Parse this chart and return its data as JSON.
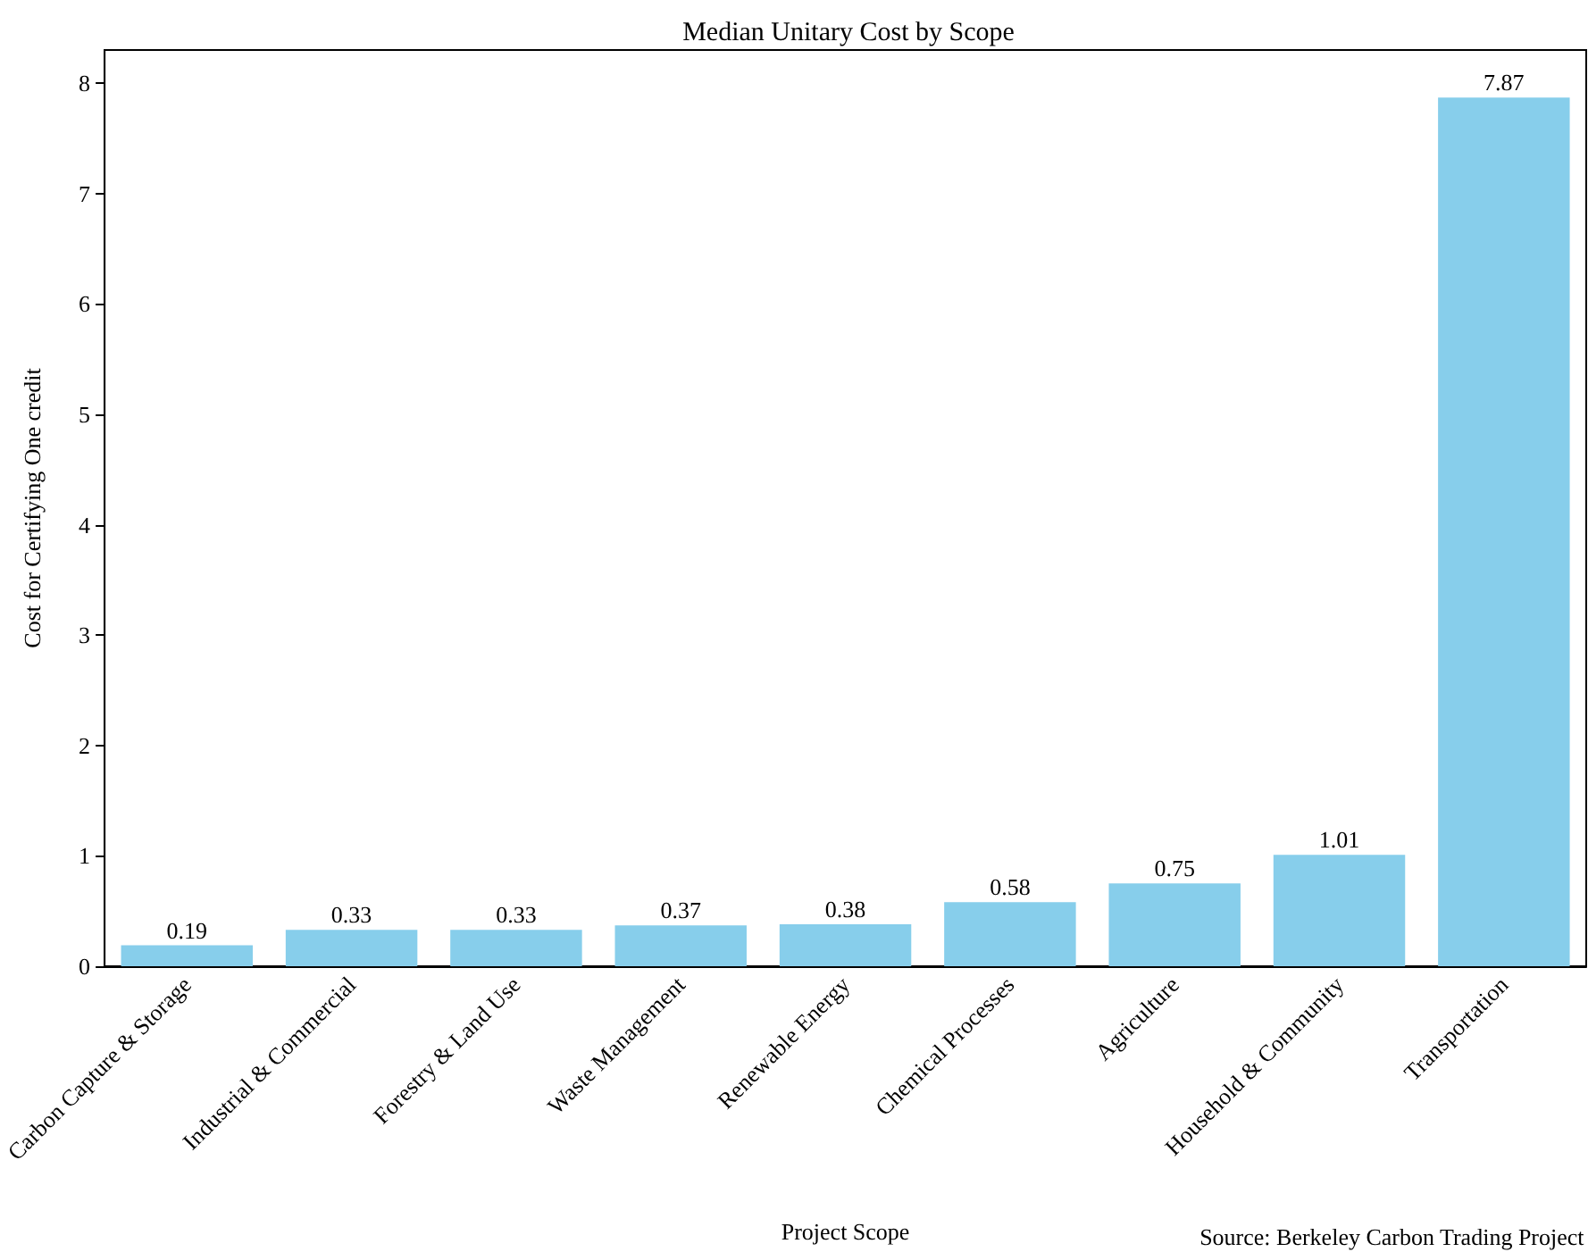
{
  "chart_data": {
    "type": "bar",
    "title": "Median Unitary Cost by Scope",
    "xlabel": "Project Scope",
    "ylabel": "Cost for Certifying One credit",
    "categories": [
      "Carbon Capture & Storage",
      "Industrial & Commercial",
      "Forestry & Land Use",
      "Waste Management",
      "Renewable Energy",
      "Chemical Processes",
      "Agriculture",
      "Household & Community",
      "Transportation"
    ],
    "values": [
      0.19,
      0.33,
      0.33,
      0.37,
      0.38,
      0.58,
      0.75,
      1.01,
      7.87
    ],
    "color": "#87ceeb",
    "ylim": [
      0,
      8.3
    ],
    "yticks": [
      0,
      1,
      2,
      3,
      4,
      5,
      6,
      7,
      8
    ],
    "data_labels": true,
    "grid": false,
    "annotations": [
      "Source: Berkeley Carbon Trading Project"
    ]
  }
}
